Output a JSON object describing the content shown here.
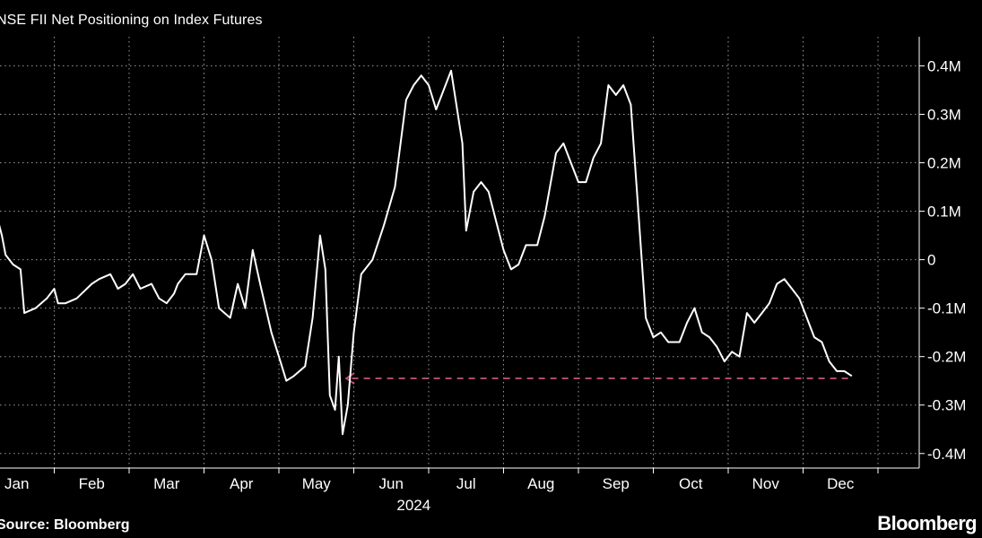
{
  "title": "NSE FII Net Positioning on Index Futures",
  "source": "Source: Bloomberg",
  "brand": "Bloomberg",
  "colors": {
    "background": "#000000",
    "line": "#ffffff",
    "grid": "#9a9a9a",
    "arrow": "#c2567f"
  },
  "chart_data": {
    "type": "line",
    "title": "NSE FII Net Positioning on Index Futures",
    "xlabel": "2024",
    "ylabel": "",
    "year_label": "2024",
    "x_tick_labels": [
      "Jan",
      "Feb",
      "Mar",
      "Apr",
      "May",
      "Jun",
      "Jul",
      "Aug",
      "Sep",
      "Oct",
      "Nov",
      "Dec"
    ],
    "y_ticks": [
      0.4,
      0.3,
      0.2,
      0.1,
      0,
      -0.1,
      -0.2,
      -0.3,
      -0.4
    ],
    "y_tick_labels": [
      "0.4M",
      "0.3M",
      "0.2M",
      "0.1M",
      "0",
      "-0.1M",
      "-0.2M",
      "-0.3M",
      "-0.4M"
    ],
    "ylim": [
      -0.43,
      0.46
    ],
    "xlim": [
      0,
      12
    ],
    "grid": true,
    "y_axis_side": "right",
    "series": [
      {
        "values": [
          [
            0.0,
            0.07
          ],
          [
            0.15,
            0.07
          ],
          [
            0.25,
            0.08
          ],
          [
            0.3,
            0.05
          ],
          [
            0.35,
            0.01
          ],
          [
            0.45,
            -0.01
          ],
          [
            0.55,
            -0.02
          ],
          [
            0.6,
            -0.11
          ],
          [
            0.75,
            -0.1
          ],
          [
            0.9,
            -0.08
          ],
          [
            1.0,
            -0.06
          ],
          [
            1.05,
            -0.09
          ],
          [
            1.15,
            -0.09
          ],
          [
            1.3,
            -0.08
          ],
          [
            1.5,
            -0.05
          ],
          [
            1.6,
            -0.04
          ],
          [
            1.75,
            -0.03
          ],
          [
            1.85,
            -0.06
          ],
          [
            1.95,
            -0.05
          ],
          [
            2.05,
            -0.03
          ],
          [
            2.15,
            -0.06
          ],
          [
            2.3,
            -0.05
          ],
          [
            2.4,
            -0.08
          ],
          [
            2.5,
            -0.09
          ],
          [
            2.6,
            -0.07
          ],
          [
            2.65,
            -0.05
          ],
          [
            2.75,
            -0.03
          ],
          [
            2.9,
            -0.03
          ],
          [
            3.0,
            0.05
          ],
          [
            3.1,
            0.0
          ],
          [
            3.2,
            -0.1
          ],
          [
            3.35,
            -0.12
          ],
          [
            3.45,
            -0.05
          ],
          [
            3.55,
            -0.1
          ],
          [
            3.65,
            0.02
          ],
          [
            3.75,
            -0.05
          ],
          [
            3.9,
            -0.15
          ],
          [
            4.0,
            -0.2
          ],
          [
            4.1,
            -0.25
          ],
          [
            4.2,
            -0.24
          ],
          [
            4.35,
            -0.22
          ],
          [
            4.45,
            -0.12
          ],
          [
            4.55,
            0.05
          ],
          [
            4.62,
            -0.02
          ],
          [
            4.68,
            -0.28
          ],
          [
            4.75,
            -0.31
          ],
          [
            4.8,
            -0.2
          ],
          [
            4.85,
            -0.36
          ],
          [
            4.92,
            -0.3
          ],
          [
            5.0,
            -0.15
          ],
          [
            5.1,
            -0.03
          ],
          [
            5.25,
            0.0
          ],
          [
            5.4,
            0.07
          ],
          [
            5.55,
            0.15
          ],
          [
            5.7,
            0.33
          ],
          [
            5.8,
            0.36
          ],
          [
            5.9,
            0.38
          ],
          [
            6.0,
            0.36
          ],
          [
            6.1,
            0.31
          ],
          [
            6.2,
            0.35
          ],
          [
            6.3,
            0.39
          ],
          [
            6.45,
            0.24
          ],
          [
            6.5,
            0.06
          ],
          [
            6.6,
            0.14
          ],
          [
            6.7,
            0.16
          ],
          [
            6.8,
            0.14
          ],
          [
            6.9,
            0.08
          ],
          [
            7.0,
            0.02
          ],
          [
            7.1,
            -0.02
          ],
          [
            7.2,
            -0.01
          ],
          [
            7.3,
            0.03
          ],
          [
            7.45,
            0.03
          ],
          [
            7.55,
            0.09
          ],
          [
            7.7,
            0.22
          ],
          [
            7.8,
            0.24
          ],
          [
            7.9,
            0.2
          ],
          [
            8.0,
            0.16
          ],
          [
            8.1,
            0.16
          ],
          [
            8.2,
            0.21
          ],
          [
            8.3,
            0.24
          ],
          [
            8.4,
            0.36
          ],
          [
            8.5,
            0.34
          ],
          [
            8.6,
            0.36
          ],
          [
            8.7,
            0.32
          ],
          [
            8.8,
            0.1
          ],
          [
            8.9,
            -0.12
          ],
          [
            9.0,
            -0.16
          ],
          [
            9.1,
            -0.15
          ],
          [
            9.2,
            -0.17
          ],
          [
            9.35,
            -0.17
          ],
          [
            9.45,
            -0.13
          ],
          [
            9.55,
            -0.1
          ],
          [
            9.65,
            -0.15
          ],
          [
            9.75,
            -0.16
          ],
          [
            9.85,
            -0.18
          ],
          [
            9.95,
            -0.21
          ],
          [
            10.05,
            -0.19
          ],
          [
            10.15,
            -0.2
          ],
          [
            10.25,
            -0.11
          ],
          [
            10.35,
            -0.13
          ],
          [
            10.45,
            -0.11
          ],
          [
            10.55,
            -0.09
          ],
          [
            10.65,
            -0.05
          ],
          [
            10.75,
            -0.04
          ],
          [
            10.85,
            -0.06
          ],
          [
            10.95,
            -0.08
          ],
          [
            11.05,
            -0.12
          ],
          [
            11.15,
            -0.16
          ],
          [
            11.25,
            -0.17
          ],
          [
            11.35,
            -0.21
          ],
          [
            11.45,
            -0.23
          ],
          [
            11.55,
            -0.23
          ],
          [
            11.65,
            -0.24
          ]
        ]
      }
    ],
    "annotations": [
      {
        "type": "dashed-arrow",
        "direction": "left",
        "y": -0.245,
        "x_start": 11.6,
        "x_end": 4.9
      }
    ]
  }
}
